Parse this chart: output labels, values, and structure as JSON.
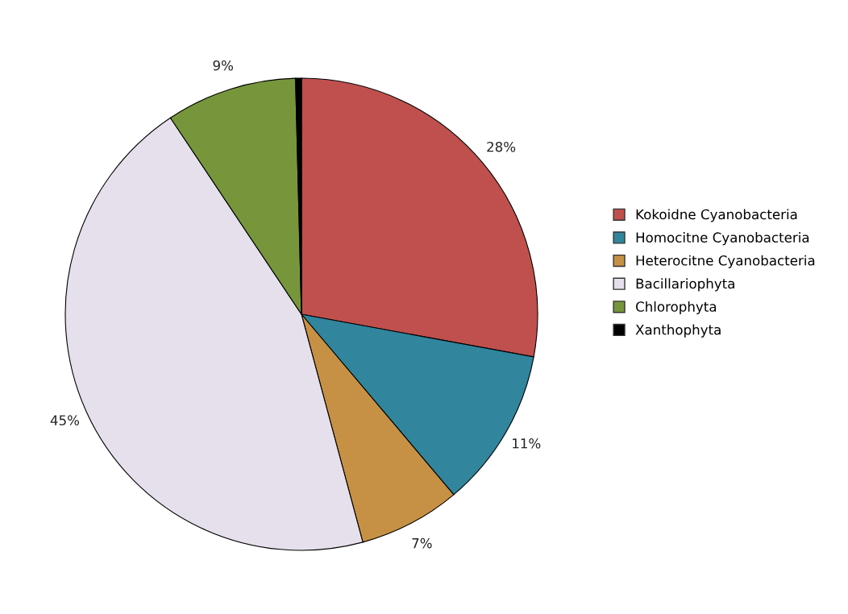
{
  "chart_data": {
    "type": "pie",
    "categories": [
      "Kokoidne Cyanobacteria",
      "Homocitne Cyanobacteria",
      "Heterocitne Cyanobacteria",
      "Bacillariophyta",
      "Chlorophyta",
      "Xanthophyta"
    ],
    "values": [
      28,
      11,
      7,
      45,
      9,
      0.4
    ],
    "value_labels": [
      "28%",
      "11%",
      "7%",
      "45%",
      "9%",
      null
    ],
    "colors": [
      "#c0504d",
      "#31859c",
      "#c79145",
      "#e6e0ec",
      "#77963b",
      "#000000"
    ],
    "legend": "right"
  }
}
